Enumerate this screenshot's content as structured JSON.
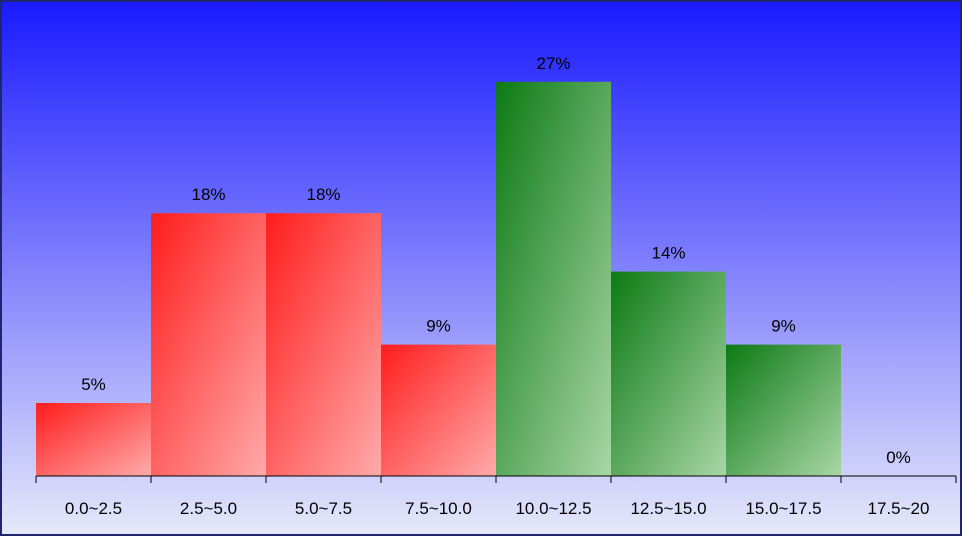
{
  "chart_data": {
    "type": "bar",
    "title": "",
    "xlabel": "",
    "ylabel": "",
    "ylim": [
      0,
      30
    ],
    "grid": false,
    "legend": "none",
    "categories": [
      "0.0~2.5",
      "2.5~5.0",
      "5.0~7.5",
      "7.5~10.0",
      "10.0~12.5",
      "12.5~15.0",
      "15.0~17.5",
      "17.5~20"
    ],
    "values": [
      5,
      18,
      18,
      9,
      27,
      14,
      9,
      0
    ],
    "value_labels": [
      "5%",
      "18%",
      "18%",
      "9%",
      "27%",
      "14%",
      "9%",
      "0%"
    ],
    "bar_groups": [
      "red",
      "red",
      "red",
      "red",
      "green",
      "green",
      "green",
      "green"
    ]
  },
  "colors": {
    "background_top": "#1a1aff",
    "background_bottom": "#e6e8fa",
    "red_dark": "#ff1c1c",
    "red_light": "#ffaaaa",
    "green_dark": "#0c7a14",
    "green_light": "#a9d6a6",
    "frame": "#1f2570",
    "axis": "#000000",
    "text": "#000000"
  }
}
